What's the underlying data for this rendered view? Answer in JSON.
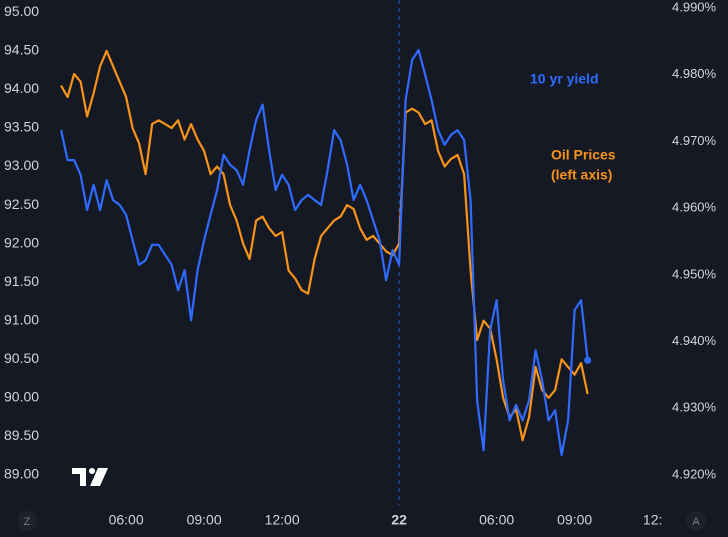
{
  "chart_data": {
    "type": "line",
    "x": [
      0,
      1,
      2,
      3,
      4,
      5,
      6,
      7,
      8,
      9,
      10,
      11,
      12,
      13,
      14,
      15,
      16,
      17,
      18,
      19,
      20,
      21,
      22,
      23,
      24,
      25,
      26,
      27,
      28,
      29,
      30,
      31,
      32,
      33,
      34,
      35,
      36,
      37,
      38,
      39,
      40,
      41,
      42,
      43,
      44,
      45,
      46,
      47,
      48,
      49,
      50,
      51,
      52,
      53,
      54,
      55,
      56,
      57,
      58,
      59,
      60,
      61,
      62,
      63,
      64,
      65,
      66,
      67,
      68,
      69,
      70,
      71,
      72,
      73,
      74,
      75,
      76,
      77,
      78,
      79,
      80,
      81
    ],
    "xlim": [
      -9.4,
      92.9
    ],
    "xticks": [
      {
        "value": 10,
        "label": "06:00"
      },
      {
        "value": 22,
        "label": "09:00"
      },
      {
        "value": 34,
        "label": "12:00"
      },
      {
        "value": 52,
        "label": "22"
      },
      {
        "value": 67,
        "label": "06:00"
      },
      {
        "value": 79,
        "label": "09:00"
      },
      {
        "value": 91,
        "label": "12:"
      }
    ],
    "ylim": [
      88.61,
      95.16
    ],
    "yticks": [
      {
        "value": 95,
        "label": "95.00"
      },
      {
        "value": 94.5,
        "label": "94.50"
      },
      {
        "value": 94,
        "label": "94.00"
      },
      {
        "value": 93.5,
        "label": "93.50"
      },
      {
        "value": 93,
        "label": "93.00"
      },
      {
        "value": 92.5,
        "label": "92.50"
      },
      {
        "value": 92,
        "label": "92.00"
      },
      {
        "value": 91.5,
        "label": "91.50"
      },
      {
        "value": 91,
        "label": "91.00"
      },
      {
        "value": 90.5,
        "label": "90.50"
      },
      {
        "value": 90,
        "label": "90.00"
      },
      {
        "value": 89.5,
        "label": "89.50"
      },
      {
        "value": 89,
        "label": "89.00"
      }
    ],
    "y2lim": [
      4.9155,
      4.9912
    ],
    "y2ticks": [
      {
        "value": 4.99,
        "label": "4.990%"
      },
      {
        "value": 4.98,
        "label": "4.980%"
      },
      {
        "value": 4.97,
        "label": "4.970%"
      },
      {
        "value": 4.96,
        "label": "4.960%"
      },
      {
        "value": 4.95,
        "label": "4.950%"
      },
      {
        "value": 4.94,
        "label": "4.940%"
      },
      {
        "value": 4.93,
        "label": "4.930%"
      },
      {
        "value": 4.92,
        "label": "4.920%"
      }
    ],
    "series": [
      {
        "name": "10 yr yield",
        "color": "#2f6bff",
        "axis": "y2",
        "values": [
          4.9717,
          4.9672,
          4.9672,
          4.965,
          4.9597,
          4.9635,
          4.9597,
          4.9642,
          4.9612,
          4.9605,
          4.959,
          4.9552,
          4.9515,
          4.9522,
          4.9545,
          4.9545,
          4.953,
          4.9515,
          4.9477,
          4.9507,
          4.9432,
          4.9507,
          4.9552,
          4.959,
          4.9627,
          4.968,
          4.9665,
          4.9657,
          4.9635,
          4.9687,
          4.9732,
          4.9755,
          4.9687,
          4.9627,
          4.965,
          4.9635,
          4.9597,
          4.9612,
          4.962,
          4.9612,
          4.9605,
          4.9657,
          4.9717,
          4.9702,
          4.9665,
          4.9612,
          4.9635,
          4.9612,
          4.9582,
          4.9552,
          4.9492,
          4.9537,
          4.9515,
          4.9762,
          4.9822,
          4.9837,
          4.98,
          4.9762,
          4.9717,
          4.9695,
          4.971,
          4.9717,
          4.9702,
          4.9612,
          4.9312,
          4.9237,
          4.9417,
          4.9462,
          4.9342,
          4.9282,
          4.9305,
          4.9282,
          4.9312,
          4.9387,
          4.9342,
          4.9282,
          4.9297,
          4.923,
          4.9282,
          4.9447,
          4.9462,
          4.9372
        ]
      },
      {
        "name": "Oil Prices",
        "color": "#f7931a",
        "values": [
          94.05,
          93.9,
          94.2,
          94.1,
          93.65,
          93.95,
          94.3,
          94.5,
          94.3,
          94.1,
          93.9,
          93.5,
          93.3,
          92.9,
          93.55,
          93.6,
          93.55,
          93.5,
          93.6,
          93.35,
          93.55,
          93.35,
          93.2,
          92.9,
          93.0,
          92.9,
          92.5,
          92.3,
          92.0,
          91.8,
          92.3,
          92.35,
          92.2,
          92.1,
          92.15,
          91.65,
          91.55,
          91.4,
          91.35,
          91.8,
          92.1,
          92.2,
          92.3,
          92.35,
          92.5,
          92.45,
          92.2,
          92.05,
          92.1,
          92.0,
          91.9,
          91.85,
          92.0,
          93.7,
          93.75,
          93.7,
          93.55,
          93.6,
          93.2,
          93.0,
          93.1,
          93.15,
          92.9,
          91.65,
          90.75,
          91.0,
          90.9,
          90.5,
          90.0,
          89.75,
          89.85,
          89.45,
          89.75,
          90.4,
          90.1,
          90.0,
          90.1,
          90.5,
          90.4,
          90.3,
          90.45,
          90.05
        ]
      }
    ],
    "annotations": [
      "(left axis)"
    ],
    "buttons": [
      "Z",
      "A"
    ]
  }
}
